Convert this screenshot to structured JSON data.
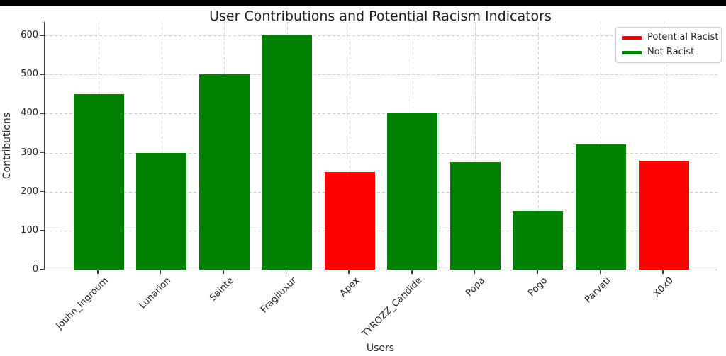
{
  "window": {
    "top_bar_color": "#000000",
    "background_color": "#ffffff"
  },
  "chart_data": {
    "type": "bar",
    "title": "User Contributions and Potential Racism Indicators",
    "xlabel": "Users",
    "ylabel": "Contributions",
    "categories": [
      "Jouhn_Ingroum",
      "Lunarion",
      "Sainte",
      "Fragiluxur",
      "Apex",
      "TYROZZ_Candide",
      "Popa",
      "Pogo",
      "Parvati",
      "X0x0"
    ],
    "values": [
      450,
      300,
      500,
      600,
      250,
      400,
      275,
      150,
      320,
      280
    ],
    "potential_racist": [
      false,
      false,
      false,
      false,
      true,
      false,
      false,
      false,
      false,
      true
    ],
    "colors": {
      "potential_racist": "#ff0000",
      "not_racist": "#008000"
    },
    "y_ticks": [
      0,
      100,
      200,
      300,
      400,
      500,
      600
    ],
    "ylim": [
      0,
      630
    ],
    "grid": true,
    "grid_style": "dashed",
    "spines": [
      "left",
      "bottom"
    ],
    "legend": {
      "position": "upper right",
      "entries": [
        {
          "label": "Potential Racist",
          "color": "#ff0000"
        },
        {
          "label": "Not Racist",
          "color": "#008000"
        }
      ]
    }
  }
}
